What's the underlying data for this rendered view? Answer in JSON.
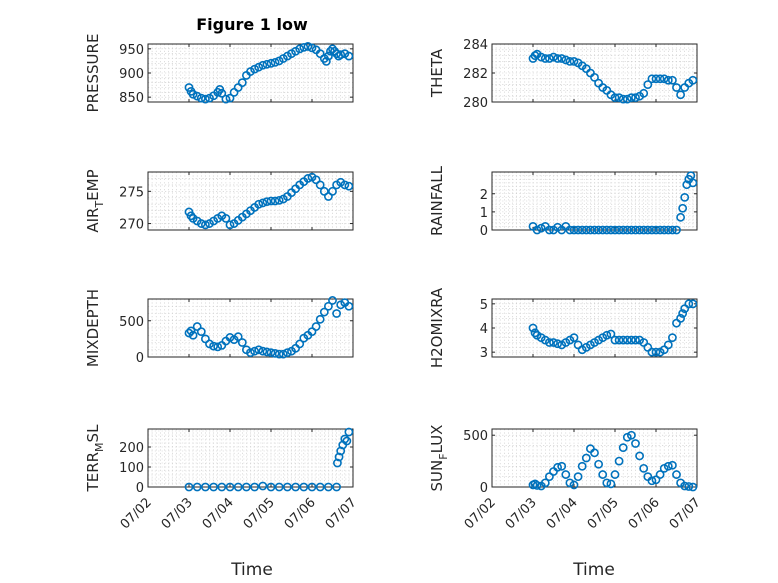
{
  "figure": {
    "title": "Figure 1 low",
    "xlabel": "Time",
    "xticks": [
      "07/02",
      "07/03",
      "07/04",
      "07/05",
      "07/06",
      "07/07"
    ],
    "marker_color": "#0072BD"
  },
  "chart_data": [
    {
      "type": "scatter",
      "ylabel": "PRESSURE",
      "xlim": [
        0,
        5
      ],
      "ylim": [
        840,
        960
      ],
      "yticks": [
        850,
        900,
        950
      ],
      "x": [
        1.0,
        1.05,
        1.1,
        1.2,
        1.3,
        1.4,
        1.5,
        1.6,
        1.7,
        1.75,
        1.8,
        1.9,
        2.0,
        2.1,
        2.2,
        2.3,
        2.4,
        2.5,
        2.6,
        2.7,
        2.8,
        2.9,
        3.0,
        3.1,
        3.2,
        3.3,
        3.4,
        3.5,
        3.6,
        3.7,
        3.8,
        3.9,
        4.0,
        4.1,
        4.2,
        4.3,
        4.35,
        4.4,
        4.45,
        4.5,
        4.55,
        4.6,
        4.65,
        4.7,
        4.8,
        4.9
      ],
      "y": [
        870,
        862,
        856,
        852,
        848,
        846,
        848,
        853,
        860,
        866,
        858,
        846,
        848,
        860,
        870,
        880,
        895,
        903,
        908,
        912,
        916,
        918,
        920,
        922,
        925,
        930,
        935,
        940,
        945,
        950,
        953,
        955,
        952,
        948,
        940,
        930,
        924,
        935,
        945,
        950,
        945,
        940,
        935,
        938,
        940,
        935
      ]
    },
    {
      "type": "scatter",
      "ylabel": "THETA",
      "xlim": [
        0,
        5
      ],
      "ylim": [
        280,
        284
      ],
      "yticks": [
        280,
        282,
        284
      ],
      "x": [
        1.0,
        1.05,
        1.1,
        1.2,
        1.3,
        1.4,
        1.5,
        1.6,
        1.7,
        1.8,
        1.9,
        2.0,
        2.1,
        2.2,
        2.3,
        2.4,
        2.5,
        2.6,
        2.7,
        2.8,
        2.9,
        3.0,
        3.1,
        3.2,
        3.3,
        3.4,
        3.5,
        3.6,
        3.7,
        3.8,
        3.9,
        4.0,
        4.1,
        4.2,
        4.3,
        4.4,
        4.5,
        4.6,
        4.7,
        4.8,
        4.9
      ],
      "y": [
        283.0,
        283.2,
        283.3,
        283.1,
        283.0,
        283.0,
        283.1,
        283.0,
        283.0,
        282.9,
        282.8,
        282.8,
        282.7,
        282.5,
        282.3,
        282.0,
        281.7,
        281.3,
        281.0,
        280.8,
        280.5,
        280.3,
        280.3,
        280.2,
        280.2,
        280.3,
        280.3,
        280.4,
        280.6,
        281.2,
        281.6,
        281.6,
        281.6,
        281.6,
        281.5,
        281.5,
        281.0,
        280.5,
        281.0,
        281.3,
        281.5
      ]
    },
    {
      "type": "scatter",
      "ylabel": "AIR_TEMP",
      "xlim": [
        0,
        5
      ],
      "ylim": [
        269,
        278
      ],
      "yticks": [
        270,
        275
      ],
      "x": [
        1.0,
        1.05,
        1.1,
        1.2,
        1.3,
        1.4,
        1.5,
        1.6,
        1.7,
        1.8,
        1.9,
        2.0,
        2.1,
        2.2,
        2.3,
        2.4,
        2.5,
        2.6,
        2.7,
        2.8,
        2.9,
        3.0,
        3.1,
        3.2,
        3.3,
        3.4,
        3.5,
        3.6,
        3.7,
        3.8,
        3.9,
        4.0,
        4.1,
        4.2,
        4.3,
        4.4,
        4.5,
        4.6,
        4.7,
        4.8,
        4.9
      ],
      "y": [
        271.8,
        271.2,
        270.8,
        270.4,
        270.0,
        269.8,
        270.0,
        270.4,
        270.8,
        271.2,
        270.8,
        269.8,
        270.0,
        270.5,
        271.0,
        271.5,
        272.0,
        272.5,
        273.0,
        273.2,
        273.4,
        273.5,
        273.5,
        273.6,
        273.8,
        274.2,
        274.8,
        275.4,
        276.0,
        276.5,
        277.0,
        277.2,
        276.8,
        276.0,
        275.0,
        274.2,
        275.0,
        276.0,
        276.4,
        276.0,
        275.8
      ]
    },
    {
      "type": "scatter",
      "ylabel": "RAINFALL",
      "xlim": [
        0,
        5
      ],
      "ylim": [
        0,
        3.2
      ],
      "yticks": [
        0,
        1,
        2
      ],
      "x": [
        1.0,
        1.1,
        1.2,
        1.3,
        1.4,
        1.5,
        1.6,
        1.7,
        1.8,
        1.9,
        2.0,
        2.1,
        2.2,
        2.3,
        2.4,
        2.5,
        2.6,
        2.7,
        2.8,
        2.9,
        3.0,
        3.1,
        3.2,
        3.3,
        3.4,
        3.5,
        3.6,
        3.7,
        3.8,
        3.9,
        4.0,
        4.1,
        4.2,
        4.3,
        4.4,
        4.5,
        4.6,
        4.65,
        4.7,
        4.75,
        4.8,
        4.85,
        4.9
      ],
      "y": [
        0.2,
        0,
        0.1,
        0.2,
        0,
        0,
        0.15,
        0,
        0.2,
        0,
        0,
        0,
        0,
        0,
        0,
        0,
        0,
        0,
        0,
        0,
        0,
        0,
        0,
        0,
        0,
        0,
        0,
        0,
        0,
        0,
        0,
        0,
        0,
        0,
        0,
        0,
        0.7,
        1.2,
        1.8,
        2.5,
        2.8,
        3.0,
        2.6
      ]
    },
    {
      "type": "scatter",
      "ylabel": "MIXDEPTH",
      "xlim": [
        0,
        5
      ],
      "ylim": [
        0,
        800
      ],
      "yticks": [
        0,
        500
      ],
      "x": [
        1.0,
        1.05,
        1.1,
        1.2,
        1.3,
        1.4,
        1.5,
        1.6,
        1.7,
        1.8,
        1.9,
        2.0,
        2.1,
        2.2,
        2.3,
        2.4,
        2.5,
        2.6,
        2.7,
        2.8,
        2.9,
        3.0,
        3.1,
        3.2,
        3.3,
        3.4,
        3.5,
        3.6,
        3.7,
        3.8,
        3.9,
        4.0,
        4.1,
        4.2,
        4.3,
        4.4,
        4.5,
        4.6,
        4.7,
        4.8,
        4.9
      ],
      "y": [
        330,
        360,
        300,
        420,
        350,
        250,
        180,
        150,
        140,
        160,
        220,
        270,
        240,
        280,
        200,
        100,
        60,
        80,
        100,
        80,
        70,
        60,
        50,
        40,
        40,
        60,
        80,
        120,
        180,
        260,
        300,
        350,
        420,
        520,
        620,
        700,
        780,
        600,
        720,
        750,
        700
      ]
    },
    {
      "type": "scatter",
      "ylabel": "H2OMIXRA",
      "xlim": [
        0,
        5
      ],
      "ylim": [
        2.8,
        5.2
      ],
      "yticks": [
        3,
        4,
        5
      ],
      "x": [
        1.0,
        1.05,
        1.1,
        1.2,
        1.3,
        1.4,
        1.5,
        1.6,
        1.7,
        1.8,
        1.9,
        2.0,
        2.1,
        2.2,
        2.3,
        2.4,
        2.5,
        2.6,
        2.7,
        2.8,
        2.9,
        3.0,
        3.1,
        3.2,
        3.3,
        3.4,
        3.5,
        3.6,
        3.7,
        3.8,
        3.9,
        4.0,
        4.1,
        4.2,
        4.3,
        4.4,
        4.5,
        4.6,
        4.65,
        4.7,
        4.8,
        4.9
      ],
      "y": [
        4.0,
        3.8,
        3.7,
        3.6,
        3.5,
        3.4,
        3.4,
        3.35,
        3.3,
        3.4,
        3.5,
        3.6,
        3.3,
        3.1,
        3.2,
        3.3,
        3.4,
        3.5,
        3.6,
        3.7,
        3.75,
        3.5,
        3.5,
        3.5,
        3.5,
        3.5,
        3.5,
        3.5,
        3.4,
        3.2,
        3.0,
        3.0,
        3.0,
        3.1,
        3.3,
        3.6,
        4.2,
        4.4,
        4.6,
        4.8,
        5.0,
        5.0
      ]
    },
    {
      "type": "scatter",
      "ylabel": "TERR_MSL",
      "xlim": [
        0,
        5
      ],
      "ylim": [
        0,
        290
      ],
      "yticks": [
        0,
        100,
        200
      ],
      "x": [
        1.0,
        1.2,
        1.4,
        1.6,
        1.8,
        2.0,
        2.2,
        2.4,
        2.6,
        2.8,
        3.0,
        3.2,
        3.4,
        3.6,
        3.8,
        4.0,
        4.2,
        4.4,
        4.6,
        4.62,
        4.66,
        4.7,
        4.75,
        4.8,
        4.85,
        4.9
      ],
      "y": [
        0,
        0,
        0,
        0,
        0,
        0,
        0,
        0,
        0,
        5,
        0,
        0,
        0,
        0,
        0,
        0,
        0,
        0,
        0,
        120,
        150,
        180,
        210,
        240,
        230,
        275
      ]
    },
    {
      "type": "scatter",
      "ylabel": "SUN_FLUX",
      "xlim": [
        0,
        5
      ],
      "ylim": [
        0,
        560
      ],
      "yticks": [
        0,
        500
      ],
      "x": [
        1.0,
        1.05,
        1.1,
        1.2,
        1.3,
        1.4,
        1.5,
        1.6,
        1.7,
        1.8,
        1.9,
        2.0,
        2.1,
        2.2,
        2.3,
        2.4,
        2.5,
        2.6,
        2.7,
        2.8,
        2.9,
        3.0,
        3.1,
        3.2,
        3.3,
        3.4,
        3.5,
        3.6,
        3.7,
        3.8,
        3.9,
        4.0,
        4.1,
        4.2,
        4.3,
        4.4,
        4.5,
        4.6,
        4.7,
        4.8,
        4.9
      ],
      "y": [
        20,
        30,
        15,
        10,
        40,
        100,
        150,
        190,
        200,
        120,
        40,
        20,
        100,
        200,
        280,
        370,
        330,
        220,
        120,
        40,
        30,
        120,
        250,
        380,
        480,
        500,
        420,
        300,
        180,
        100,
        60,
        70,
        120,
        180,
        200,
        210,
        120,
        40,
        10,
        5,
        0
      ]
    }
  ]
}
